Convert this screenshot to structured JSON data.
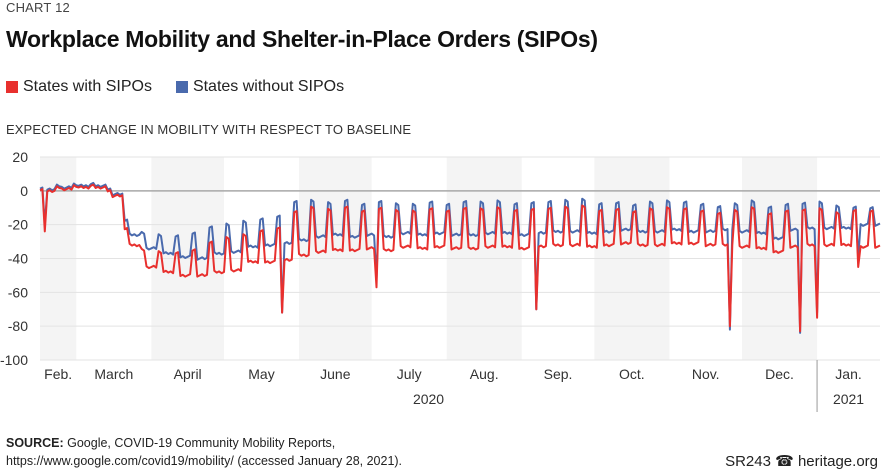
{
  "eyebrow": "CHART 12",
  "title": "Workplace Mobility and Shelter-in-Place Orders (SIPOs)",
  "legend": [
    {
      "label": "States with SIPOs",
      "color": "#e8302e"
    },
    {
      "label": "States without SIPOs",
      "color": "#4a6aad"
    }
  ],
  "y_axis_title": "EXPECTED CHANGE IN MOBILITY WITH RESPECT TO BASELINE",
  "source_label": "SOURCE:",
  "source_text": " Google, COVID-19 Community Mobility Reports,",
  "source_text2": "https://www.google.com/covid19/mobility/ (accessed January 28, 2021).",
  "credit": "SR243 ☎ heritage.org",
  "chart_data": {
    "type": "line",
    "title": "Workplace Mobility and Shelter-in-Place Orders (SIPOs)",
    "ylabel": "Expected change in mobility with respect to baseline",
    "xlabel": "",
    "ylim": [
      -100,
      20
    ],
    "yticks": [
      20,
      0,
      -20,
      -40,
      -60,
      -80,
      -100
    ],
    "x_start": "2020-02-15",
    "x_end": "2021-01-27",
    "month_labels": [
      "Feb.",
      "March",
      "April",
      "May",
      "June",
      "July",
      "Aug.",
      "Sep.",
      "Oct.",
      "Nov.",
      "Dec.",
      "Jan."
    ],
    "shaded_months": [
      "Feb.",
      "April",
      "June",
      "Aug.",
      "Oct.",
      "Dec."
    ],
    "year_labels": [
      "2020",
      "2021"
    ],
    "grid": true,
    "legend_position": "top-left",
    "series_note": "Weekly profile: weekday level and weekend peak per week (data units); holidays listed separately",
    "series": [
      {
        "name": "States with SIPOs",
        "color": "#e8302e",
        "weekday": [
          0,
          1,
          2,
          2,
          -3,
          -32,
          -45,
          -48,
          -50,
          -50,
          -48,
          -47,
          -42,
          -42,
          -41,
          -38,
          -36,
          -35,
          -35,
          -34,
          -35,
          -33,
          -34,
          -33,
          -34,
          -34,
          -33,
          -33,
          -34,
          -33,
          -32,
          -32,
          -33,
          -32,
          -31,
          -32,
          -32,
          -31,
          -31,
          -32,
          -32,
          -33,
          -34,
          -36,
          -33,
          -32,
          -32,
          -32,
          -33
        ],
        "weekend": [
          1,
          2,
          3,
          3,
          0,
          -22,
          -35,
          -36,
          -37,
          -35,
          -30,
          -28,
          -26,
          -24,
          -22,
          -12,
          -10,
          -11,
          -10,
          -12,
          -10,
          -12,
          -12,
          -11,
          -12,
          -10,
          -11,
          -10,
          -12,
          -11,
          -10,
          -10,
          -9,
          -12,
          -11,
          -12,
          -11,
          -10,
          -11,
          -12,
          -13,
          -12,
          -10,
          -14,
          -12,
          -11,
          -11,
          -13,
          -12
        ],
        "holidays": [
          {
            "date": "2020-02-17",
            "value": -24
          },
          {
            "date": "2020-05-25",
            "value": -72
          },
          {
            "date": "2020-07-03",
            "value": -57
          },
          {
            "date": "2020-09-07",
            "value": -70
          },
          {
            "date": "2020-11-26",
            "value": -80
          },
          {
            "date": "2020-12-25",
            "value": -83
          },
          {
            "date": "2021-01-01",
            "value": -75
          },
          {
            "date": "2021-01-18",
            "value": -45
          }
        ]
      },
      {
        "name": "States without SIPOs",
        "color": "#4a6aad",
        "weekday": [
          1,
          2,
          3,
          3,
          -2,
          -26,
          -34,
          -37,
          -39,
          -40,
          -37,
          -36,
          -33,
          -32,
          -31,
          -29,
          -27,
          -26,
          -27,
          -26,
          -27,
          -25,
          -26,
          -25,
          -26,
          -26,
          -25,
          -25,
          -26,
          -25,
          -24,
          -24,
          -25,
          -24,
          -23,
          -24,
          -24,
          -23,
          -24,
          -24,
          -23,
          -24,
          -25,
          -28,
          -23,
          -22,
          -22,
          -22,
          -20
        ],
        "weekend": [
          2,
          3,
          4,
          4,
          1,
          -17,
          -25,
          -26,
          -27,
          -25,
          -21,
          -20,
          -18,
          -17,
          -15,
          -6,
          -6,
          -7,
          -6,
          -8,
          -6,
          -8,
          -8,
          -7,
          -8,
          -6,
          -7,
          -6,
          -8,
          -7,
          -6,
          -6,
          -5,
          -8,
          -7,
          -8,
          -7,
          -6,
          -7,
          -8,
          -9,
          -8,
          -6,
          -10,
          -8,
          -7,
          -7,
          -9,
          -10
        ],
        "holidays": [
          {
            "date": "2020-02-17",
            "value": -20
          },
          {
            "date": "2020-05-25",
            "value": -72
          },
          {
            "date": "2020-07-03",
            "value": -52
          },
          {
            "date": "2020-09-07",
            "value": -70
          },
          {
            "date": "2020-11-26",
            "value": -82
          },
          {
            "date": "2020-12-25",
            "value": -84
          },
          {
            "date": "2021-01-01",
            "value": -72
          },
          {
            "date": "2021-01-18",
            "value": -40
          }
        ]
      }
    ]
  }
}
